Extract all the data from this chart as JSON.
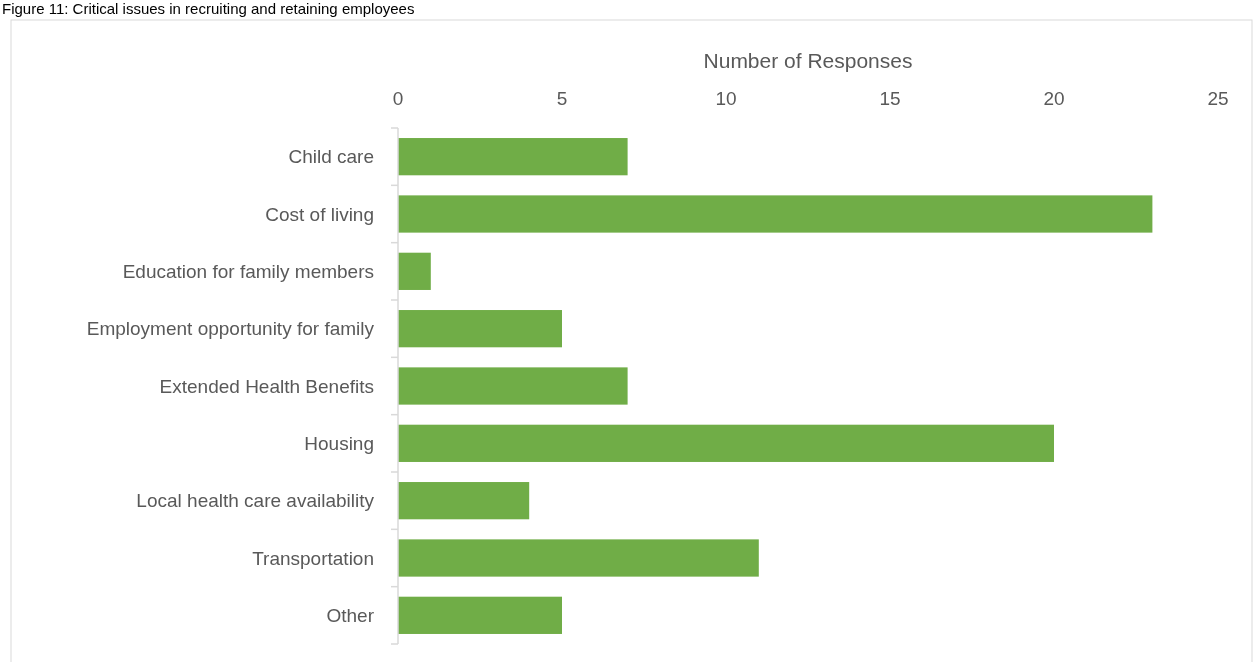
{
  "chart_data": {
    "type": "bar",
    "orientation": "horizontal",
    "title": "Figure 11: Critical issues in recruiting and retaining employees",
    "xlabel": "Number of Responses",
    "categories": [
      "Child care",
      "Cost of living",
      "Education for family members",
      "Employment opportunity for family",
      "Extended Health Benefits",
      "Housing",
      "Local health care availability",
      "Transportation",
      "Other"
    ],
    "values": [
      7,
      23,
      1,
      5,
      7,
      20,
      4,
      11,
      5
    ],
    "color": "#70ad47",
    "xlim": [
      0,
      25
    ],
    "xticks": [
      0,
      5,
      10,
      15,
      20,
      25
    ],
    "grid": false
  }
}
